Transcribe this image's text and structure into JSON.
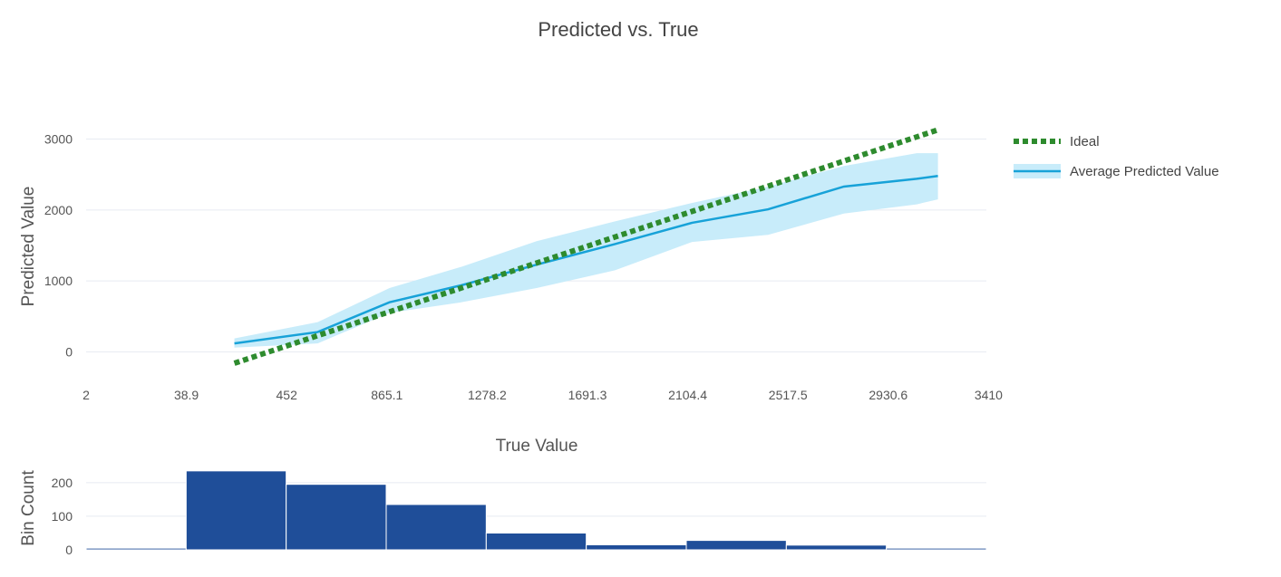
{
  "chart_data": {
    "title": "Predicted vs. True",
    "top": {
      "type": "line",
      "ylabel": "Predicted Value",
      "ylim": [
        -300,
        3300
      ],
      "y_ticks": [
        0,
        1000,
        2000,
        3000
      ],
      "x_ticks": [
        "2",
        "38.9",
        "452",
        "865.1",
        "1278.2",
        "1691.3",
        "2104.4",
        "2517.5",
        "2930.6",
        "3410"
      ],
      "grid": true,
      "legend": "right",
      "series": [
        {
          "name": "Ideal",
          "style": "dotted",
          "color": "#2e8b2e",
          "x": [
            238.9,
            3137.5
          ],
          "y": [
            -160,
            3130
          ]
        },
        {
          "name": "Average Predicted Value",
          "style": "solid",
          "color": "#17a2d8",
          "band_color": "#c8ecfa",
          "x": [
            238.9,
            582,
            878,
            1175,
            1484,
            1807,
            2125,
            2438,
            2750,
            3050,
            3137.5
          ],
          "y": [
            120,
            280,
            700,
            940,
            1230,
            1520,
            1820,
            2010,
            2330,
            2440,
            2480
          ],
          "y_upper": [
            190,
            420,
            900,
            1200,
            1560,
            1840,
            2100,
            2330,
            2620,
            2800,
            2800
          ],
          "y_lower": [
            60,
            120,
            550,
            700,
            900,
            1150,
            1550,
            1650,
            1950,
            2080,
            2150
          ]
        }
      ]
    },
    "bottom": {
      "type": "bar",
      "xlabel": "True Value",
      "ylabel": "Bin Count",
      "ylim": [
        0,
        240
      ],
      "y_ticks": [
        0,
        100,
        200
      ],
      "bar_color": "#1f4e99",
      "values": [
        5,
        235,
        195,
        135,
        50,
        15,
        28,
        14,
        5
      ]
    }
  }
}
